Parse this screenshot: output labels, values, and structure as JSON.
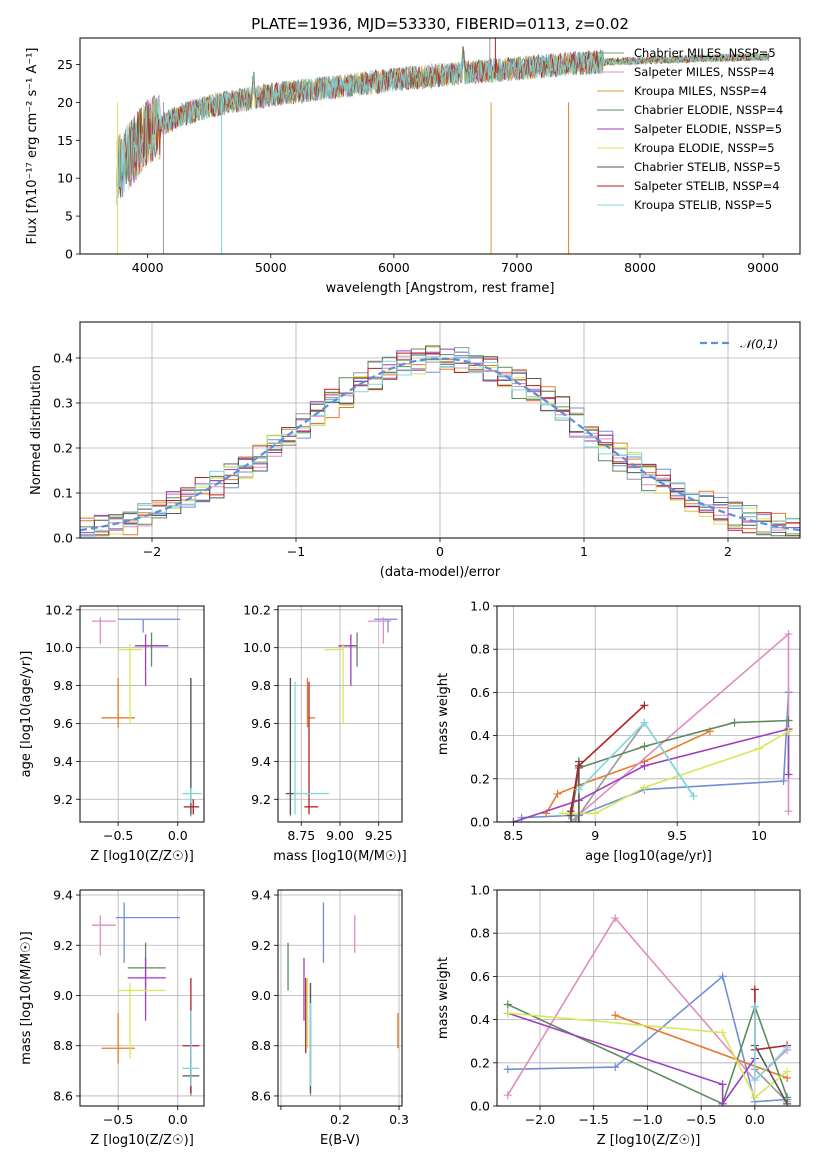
{
  "palette": [
    "#6f8fd8",
    "#e87a2b",
    "#e08cc0",
    "#999999",
    "#5e8a5e",
    "#9c3fbf",
    "#d6e85a",
    "#555555",
    "#b22222",
    "#80d8e0"
  ],
  "legend_colors": [
    "#6fa56f",
    "#e08cc0",
    "#d9a040",
    "#5e8a5e",
    "#9c3fbf",
    "#d6e85a",
    "#555555",
    "#b22222",
    "#80d8e0"
  ],
  "chart_data": [
    {
      "id": "spectrum",
      "type": "line",
      "title": "PLATE=1936, MJD=53330, FIBERID=0113, z=0.02",
      "xlabel": "wavelength [Angstrom, rest frame]",
      "ylabel": "Flux [fλ10⁻¹⁷ erg cm⁻² s⁻¹ A⁻¹]",
      "xlim": [
        3450,
        9300
      ],
      "ylim": [
        0,
        28.5
      ],
      "xticks": [
        4000,
        5000,
        6000,
        7000,
        8000,
        9000
      ],
      "yticks": [
        0,
        5,
        10,
        15,
        20,
        25
      ],
      "legend_position": "top-right",
      "legend": [
        "Chabrier MILES, NSSP=5",
        "Salpeter MILES, NSSP=4",
        "Kroupa MILES, NSSP=4",
        "Chabrier ELODIE, NSSP=4",
        "Salpeter ELODIE, NSSP=5",
        "Kroupa ELODIE, NSSP=5",
        "Chabrier STELIB, NSSP=5",
        "Salpeter STELIB, NSSP=4",
        "Kroupa STELIB, NSSP=5"
      ],
      "continuum": {
        "x": [
          3750,
          3900,
          4000,
          4100,
          4300,
          4500,
          5000,
          5500,
          6000,
          6500,
          7000,
          7500,
          8000,
          8500,
          9000
        ],
        "y": [
          11,
          14,
          16,
          17,
          18.5,
          19.5,
          21,
          22,
          23,
          23.8,
          24.5,
          25.2,
          25.5,
          25.8,
          26
        ]
      }
    },
    {
      "id": "residuals",
      "type": "histogram",
      "xlabel": "(data-model)/error",
      "ylabel": "Normed distribution",
      "xlim": [
        -2.5,
        2.5
      ],
      "ylim": [
        0,
        0.48
      ],
      "xticks": [
        -2,
        -1,
        0,
        1,
        2
      ],
      "xtick_labels": [
        "−2",
        "−1",
        "0",
        "1",
        "2"
      ],
      "yticks": [
        0.0,
        0.1,
        0.2,
        0.3,
        0.4
      ],
      "legend": [
        "𝒩(0,1)"
      ],
      "legend_position": "top-right",
      "bin_width": 0.1,
      "grid": true
    },
    {
      "id": "z-age",
      "type": "errorbar",
      "xlabel": "Z [log10(Z/Z☉)]",
      "ylabel": "age  [log10(age/yr)]",
      "xlim": [
        -0.82,
        0.22
      ],
      "ylim": [
        9.08,
        10.22
      ],
      "xticks": [
        -0.5,
        0.0
      ],
      "xtick_labels": [
        "−0.5",
        "0.0"
      ],
      "yticks": [
        9.2,
        9.4,
        9.6,
        9.8,
        10.0,
        10.2
      ],
      "grid": true,
      "points": [
        {
          "x": -0.29,
          "y": 10.15,
          "x_lo": -0.5,
          "x_hi": 0.02,
          "y_lo": 10.08,
          "y_hi": 10.15
        },
        {
          "x": -0.5,
          "y": 9.63,
          "x_lo": -0.64,
          "x_hi": -0.36,
          "y_lo": 9.58,
          "y_hi": 9.84
        },
        {
          "x": -0.65,
          "y": 10.14,
          "x_lo": -0.72,
          "x_hi": -0.52,
          "y_lo": 10.02,
          "y_hi": 10.16
        },
        {
          "x": 0.11,
          "y": 9.63,
          "x_lo": 0.11,
          "x_hi": 0.11,
          "y_lo": 9.11,
          "y_hi": 9.84
        },
        {
          "x": -0.22,
          "y": 10.01,
          "x_lo": -0.33,
          "x_hi": -0.08,
          "y_lo": 9.9,
          "y_hi": 10.08
        },
        {
          "x": -0.27,
          "y": 10.01,
          "x_lo": -0.36,
          "x_hi": -0.08,
          "y_lo": 9.8,
          "y_hi": 10.07
        },
        {
          "x": -0.4,
          "y": 9.99,
          "x_lo": -0.5,
          "x_hi": -0.3,
          "y_lo": 9.6,
          "y_hi": 10.02
        },
        {
          "x": 0.11,
          "y": 9.63,
          "x_lo": 0.11,
          "x_hi": 0.11,
          "y_lo": 9.12,
          "y_hi": 9.84
        },
        {
          "x": 0.13,
          "y": 9.16,
          "x_lo": 0.05,
          "x_hi": 0.18,
          "y_lo": 9.12,
          "y_hi": 9.2
        },
        {
          "x": 0.11,
          "y": 9.23,
          "x_lo": 0.04,
          "x_hi": 0.2,
          "y_lo": 9.18,
          "y_hi": 9.26
        }
      ]
    },
    {
      "id": "mass-age",
      "type": "errorbar",
      "xlabel": "mass [log10(M/M☉)]",
      "ylabel": "",
      "xlim": [
        8.6,
        9.4
      ],
      "ylim": [
        9.08,
        10.22
      ],
      "xticks": [
        8.75,
        9.0,
        9.25
      ],
      "xtick_labels": [
        "8.75",
        "9.00",
        "9.25"
      ],
      "yticks": [
        9.2,
        9.4,
        9.6,
        9.8,
        10.0,
        10.2
      ],
      "grid": true,
      "points": [
        {
          "x": 9.31,
          "y": 10.15,
          "x_lo": 9.22,
          "x_hi": 9.37,
          "y_lo": 10.08,
          "y_hi": 10.15
        },
        {
          "x": 8.79,
          "y": 9.63,
          "x_lo": 8.79,
          "x_hi": 8.84,
          "y_lo": 9.58,
          "y_hi": 9.84
        },
        {
          "x": 9.28,
          "y": 10.14,
          "x_lo": 9.18,
          "x_hi": 9.33,
          "y_lo": 10.02,
          "y_hi": 10.16
        },
        {
          "x": 8.68,
          "y": 9.23,
          "x_lo": 8.68,
          "x_hi": 8.68,
          "y_lo": 9.11,
          "y_hi": 9.84
        },
        {
          "x": 9.11,
          "y": 10.01,
          "x_lo": 9.05,
          "x_hi": 9.11,
          "y_lo": 9.9,
          "y_hi": 10.08
        },
        {
          "x": 9.07,
          "y": 10.01,
          "x_lo": 8.99,
          "x_hi": 9.11,
          "y_lo": 9.8,
          "y_hi": 10.07
        },
        {
          "x": 9.02,
          "y": 9.99,
          "x_lo": 8.9,
          "x_hi": 9.02,
          "y_lo": 9.6,
          "y_hi": 10.02
        },
        {
          "x": 8.68,
          "y": 9.23,
          "x_lo": 8.65,
          "x_hi": 8.72,
          "y_lo": 9.12,
          "y_hi": 9.84
        },
        {
          "x": 8.8,
          "y": 9.16,
          "x_lo": 8.77,
          "x_hi": 8.86,
          "y_lo": 9.12,
          "y_hi": 9.82
        },
        {
          "x": 8.71,
          "y": 9.23,
          "x_lo": 8.7,
          "x_hi": 8.93,
          "y_lo": 9.12,
          "y_hi": 9.82
        }
      ]
    },
    {
      "id": "age-weight",
      "type": "line",
      "xlabel": "age  [log10(age/yr)]",
      "ylabel": "mass weight",
      "xlim": [
        8.4,
        10.25
      ],
      "ylim": [
        0,
        1
      ],
      "xticks": [
        8.5,
        9.0,
        9.5,
        10.0
      ],
      "yticks": [
        0.0,
        0.2,
        0.4,
        0.6,
        0.8,
        1.0
      ],
      "grid": true,
      "series": [
        {
          "x": [
            8.55,
            8.84,
            8.9,
            9.3,
            10.15,
            10.18,
            10.18
          ],
          "y": [
            0.02,
            0.03,
            0.03,
            0.15,
            0.19,
            0.6,
            0.6
          ]
        },
        {
          "x": [
            8.7,
            8.77,
            8.9,
            9.3,
            9.7
          ],
          "y": [
            0.04,
            0.13,
            0.17,
            0.28,
            0.42
          ]
        },
        {
          "x": [
            8.85,
            10.18,
            10.18
          ],
          "y": [
            0.0,
            0.87,
            0.05
          ]
        },
        {
          "x": [
            8.88,
            9.3,
            9.6
          ],
          "y": [
            0.01,
            0.46,
            0.12
          ]
        },
        {
          "x": [
            8.85,
            8.9,
            9.3,
            9.85,
            10.18
          ],
          "y": [
            0.0,
            0.25,
            0.35,
            0.46,
            0.47
          ]
        },
        {
          "x": [
            8.5,
            8.9,
            9.3,
            10.18,
            10.18
          ],
          "y": [
            0.0,
            0.1,
            0.26,
            0.43,
            0.22
          ]
        },
        {
          "x": [
            8.8,
            9.0,
            9.3,
            10.0,
            10.18
          ],
          "y": [
            0.04,
            0.04,
            0.16,
            0.34,
            0.42
          ]
        },
        {
          "x": [
            8.85,
            8.9,
            8.9
          ],
          "y": [
            0.03,
            0.28,
            0.0
          ]
        },
        {
          "x": [
            8.85,
            8.9,
            9.3
          ],
          "y": [
            0.05,
            0.26,
            0.54
          ]
        },
        {
          "x": [
            8.9,
            9.3,
            9.6
          ],
          "y": [
            0.15,
            0.46,
            0.12
          ]
        }
      ]
    },
    {
      "id": "z-mass",
      "type": "errorbar",
      "xlabel": "Z [log10(Z/Z☉)]",
      "ylabel": "mass [log10(M/M☉)]",
      "xlim": [
        -0.82,
        0.22
      ],
      "ylim": [
        8.56,
        9.42
      ],
      "xticks": [
        -0.5,
        0.0
      ],
      "xtick_labels": [
        "−0.5",
        "0.0"
      ],
      "yticks": [
        8.6,
        8.8,
        9.0,
        9.2,
        9.4
      ],
      "grid": true,
      "points": [
        {
          "x": -0.45,
          "y": 9.31,
          "x_lo": -0.52,
          "x_hi": 0.02,
          "y_lo": 9.13,
          "y_hi": 9.37
        },
        {
          "x": -0.5,
          "y": 8.79,
          "x_lo": -0.64,
          "x_hi": -0.36,
          "y_lo": 8.73,
          "y_hi": 8.93
        },
        {
          "x": -0.65,
          "y": 9.28,
          "x_lo": -0.72,
          "x_hi": -0.52,
          "y_lo": 9.16,
          "y_hi": 9.32
        },
        {
          "x": 0.11,
          "y": 8.7,
          "x_lo": 0.11,
          "x_hi": 0.11,
          "y_lo": 8.6,
          "y_hi": 8.95
        },
        {
          "x": -0.27,
          "y": 9.11,
          "x_lo": -0.42,
          "x_hi": -0.1,
          "y_lo": 9.02,
          "y_hi": 9.21
        },
        {
          "x": -0.27,
          "y": 9.07,
          "x_lo": -0.42,
          "x_hi": -0.1,
          "y_lo": 8.9,
          "y_hi": 9.15
        },
        {
          "x": -0.4,
          "y": 9.02,
          "x_lo": -0.5,
          "x_hi": -0.1,
          "y_lo": 8.75,
          "y_hi": 9.05
        },
        {
          "x": 0.11,
          "y": 8.68,
          "x_lo": 0.04,
          "x_hi": 0.18,
          "y_lo": 8.61,
          "y_hi": 8.75
        },
        {
          "x": 0.11,
          "y": 8.8,
          "x_lo": 0.04,
          "x_hi": 0.18,
          "y_lo": 8.61,
          "y_hi": 9.07
        },
        {
          "x": 0.11,
          "y": 8.71,
          "x_lo": 0.04,
          "x_hi": 0.18,
          "y_lo": 8.64,
          "y_hi": 8.94
        }
      ]
    },
    {
      "id": "ebv-mass",
      "type": "errorbar",
      "xlabel": "E(B-V)",
      "ylabel": "",
      "xlim": [
        0.095,
        0.305
      ],
      "ylim": [
        8.56,
        9.42
      ],
      "xticks": [
        0.1,
        0.2,
        0.3
      ],
      "xtick_labels": [
        "",
        "0.2",
        "0.3"
      ],
      "yticks": [
        8.6,
        8.8,
        9.0,
        9.2,
        9.4
      ],
      "grid": true,
      "points": [
        {
          "x": 0.172,
          "y": 9.25,
          "x_lo": 0.172,
          "x_hi": 0.172,
          "y_lo": 9.13,
          "y_hi": 9.37
        },
        {
          "x": 0.298,
          "y": 8.85,
          "x_lo": 0.298,
          "x_hi": 0.298,
          "y_lo": 8.79,
          "y_hi": 8.93
        },
        {
          "x": 0.225,
          "y": 9.25,
          "x_lo": 0.225,
          "x_hi": 0.225,
          "y_lo": 9.17,
          "y_hi": 9.32
        },
        {
          "x": 0.15,
          "y": 8.85,
          "x_lo": 0.15,
          "x_hi": 0.15,
          "y_lo": 8.6,
          "y_hi": 9.05
        },
        {
          "x": 0.112,
          "y": 9.11,
          "x_lo": 0.112,
          "x_hi": 0.112,
          "y_lo": 9.02,
          "y_hi": 9.21
        },
        {
          "x": 0.139,
          "y": 9.0,
          "x_lo": 0.139,
          "x_hi": 0.139,
          "y_lo": 8.9,
          "y_hi": 9.15
        },
        {
          "x": 0.145,
          "y": 8.95,
          "x_lo": 0.145,
          "x_hi": 0.145,
          "y_lo": 8.79,
          "y_hi": 9.07
        },
        {
          "x": 0.15,
          "y": 8.85,
          "x_lo": 0.15,
          "x_hi": 0.15,
          "y_lo": 8.61,
          "y_hi": 9.05
        },
        {
          "x": 0.142,
          "y": 8.9,
          "x_lo": 0.142,
          "x_hi": 0.142,
          "y_lo": 8.77,
          "y_hi": 9.07
        },
        {
          "x": 0.15,
          "y": 8.8,
          "x_lo": 0.15,
          "x_hi": 0.15,
          "y_lo": 8.64,
          "y_hi": 8.97
        }
      ]
    },
    {
      "id": "z-weight",
      "type": "line",
      "xlabel": "Z [log10(Z/Z☉)]",
      "ylabel": "mass weight",
      "xlim": [
        -2.4,
        0.42
      ],
      "ylim": [
        0,
        1
      ],
      "xticks": [
        -2.0,
        -1.5,
        -1.0,
        -0.5,
        0.0
      ],
      "xtick_labels": [
        "−2.0",
        "−1.5",
        "−1.0",
        "−0.5",
        "0.0"
      ],
      "yticks": [
        0.0,
        0.2,
        0.4,
        0.6,
        0.8,
        1.0
      ],
      "grid": true,
      "series": [
        {
          "x": [
            -2.3,
            -1.3,
            -0.3,
            0.0,
            0.3
          ],
          "y": [
            0.17,
            0.18,
            0.6,
            0.02,
            0.03
          ]
        },
        {
          "x": [
            -1.3,
            0.3,
            0.3
          ],
          "y": [
            0.42,
            0.13,
            0.13
          ]
        },
        {
          "x": [
            -2.3,
            -1.3,
            0.0,
            0.3
          ],
          "y": [
            0.05,
            0.87,
            0.12,
            0.26
          ]
        },
        {
          "x": [
            0.0,
            0.3
          ],
          "y": [
            0.17,
            0.02
          ]
        },
        {
          "x": [
            -2.3,
            -0.3,
            0.0,
            0.3
          ],
          "y": [
            0.47,
            0.01,
            0.46,
            0.04
          ]
        },
        {
          "x": [
            -2.3,
            -0.3,
            -0.3,
            0.0
          ],
          "y": [
            0.43,
            0.1,
            0.01,
            0.22
          ]
        },
        {
          "x": [
            -2.3,
            -0.3,
            0.0,
            0.3
          ],
          "y": [
            0.43,
            0.34,
            0.04,
            0.16
          ]
        },
        {
          "x": [
            0.0,
            0.3
          ],
          "y": [
            0.28,
            0.01
          ]
        },
        {
          "x": [
            0.0,
            0.0,
            0.3
          ],
          "y": [
            0.54,
            0.26,
            0.28
          ]
        },
        {
          "x": [
            0.0,
            0.0,
            0.3
          ],
          "y": [
            0.46,
            0.12,
            0.27
          ]
        }
      ]
    }
  ]
}
